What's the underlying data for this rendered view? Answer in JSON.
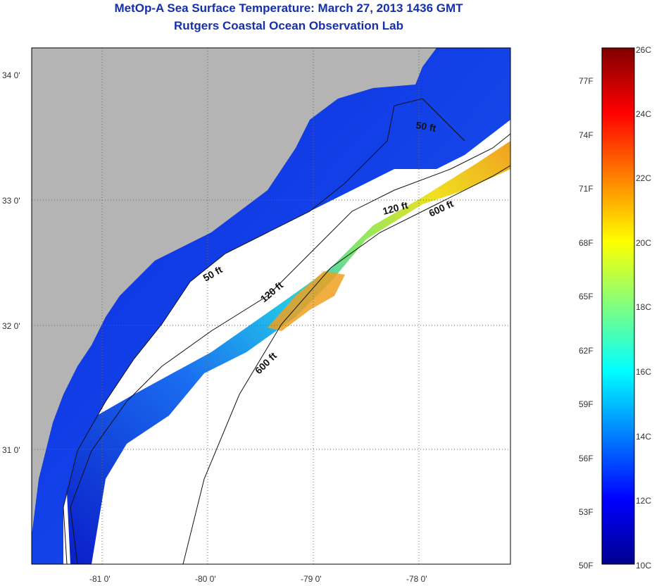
{
  "header": {
    "title": "MetOp-A Sea Surface Temperature:  March 27, 2013 1436 GMT",
    "subtitle": "Rutgers Coastal Ocean Observation Lab"
  },
  "map": {
    "lat_labels": [
      "34 0'",
      "33 0'",
      "32 0'",
      "31 0'"
    ],
    "lon_labels": [
      "-81 0'",
      "-80 0'",
      "-79 0'",
      "-78 0'"
    ],
    "contour_labels": [
      "50 ft",
      "50 ft",
      "120 ft",
      "120 ft",
      "600 ft",
      "600 ft"
    ],
    "colors": {
      "land": "#b4b4b4",
      "no_data": "#ffffff",
      "cold": "#0a2ae0",
      "warm": "#f0a020"
    }
  },
  "colorbar": {
    "fahrenheit_labels": [
      "77F",
      "74F",
      "71F",
      "68F",
      "65F",
      "62F",
      "59F",
      "56F",
      "53F",
      "50F"
    ],
    "celsius_labels": [
      "26C",
      "24C",
      "22C",
      "20C",
      "18C",
      "16C",
      "14C",
      "12C",
      "10C"
    ],
    "range_c": [
      10,
      26
    ]
  }
}
